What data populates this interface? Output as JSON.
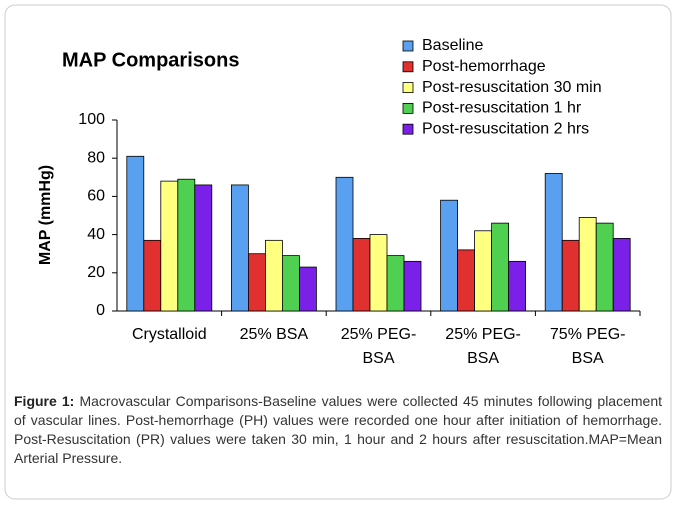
{
  "chart_data": {
    "type": "bar",
    "title": "MAP Comparisons",
    "ylabel": "MAP (mmHg)",
    "categories": [
      "Crystalloid",
      "25% BSA",
      "25% PEG-BSA",
      "25% PEG-BSA",
      "75% PEG-BSA"
    ],
    "series": [
      {
        "name": "Baseline",
        "color": "#5aa0f0",
        "values": [
          81,
          66,
          70,
          58,
          72
        ]
      },
      {
        "name": "Post-hemorrhage",
        "color": "#e03030",
        "values": [
          37,
          30,
          38,
          32,
          37
        ]
      },
      {
        "name": "Post-resuscitation 30 min",
        "color": "#ffff80",
        "values": [
          68,
          37,
          40,
          42,
          49
        ]
      },
      {
        "name": "Post-resuscitation 1 hr",
        "color": "#50d050",
        "values": [
          69,
          29,
          29,
          46,
          46
        ]
      },
      {
        "name": "Post-resuscitation 2 hrs",
        "color": "#7a20e8",
        "values": [
          66,
          23,
          26,
          26,
          38
        ]
      }
    ],
    "ylim": [
      0,
      100
    ],
    "yticks": [
      0,
      20,
      40,
      60,
      80,
      100
    ]
  },
  "caption": {
    "label": "Figure 1:",
    "text": "Macrovascular Comparisons-Baseline values were collected 45 minutes following placement of vascular lines. Post-hemorrhage (PH) values were recorded one hour after initiation of hemorrhage. Post-Resuscitation (PR) values were taken 30 min, 1 hour and 2 hours after resuscitation.MAP=Mean Arterial Pressure."
  }
}
